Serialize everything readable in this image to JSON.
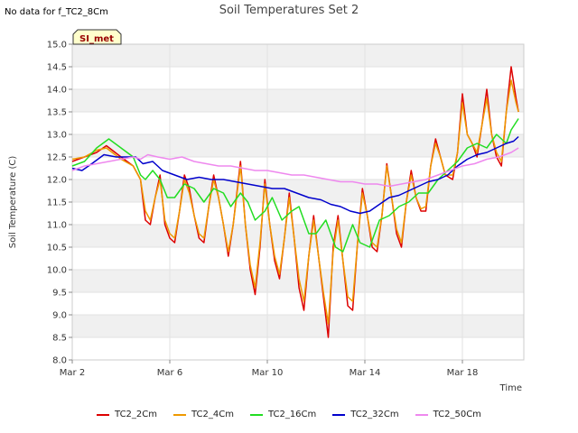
{
  "header": {
    "nodata": "No data for f_TC2_8Cm",
    "title": "Soil Temperatures Set 2",
    "badge": "SI_met"
  },
  "chart_data": {
    "type": "line",
    "title": "Soil Temperatures Set 2",
    "xlabel": "Time",
    "ylabel": "Soil Temperature (C)",
    "xlim": [
      0,
      18
    ],
    "ylim": [
      8.0,
      15.0
    ],
    "x_ticks": [
      {
        "label": "Mar 2",
        "x": 0
      },
      {
        "label": "Mar 6",
        "x": 4
      },
      {
        "label": "Mar 10",
        "x": 8
      },
      {
        "label": "Mar 14",
        "x": 12
      },
      {
        "label": "Mar 18",
        "x": 16
      }
    ],
    "y_ticks": [
      "8.0",
      "8.5",
      "9.0",
      "9.5",
      "10.0",
      "10.5",
      "11.0",
      "11.5",
      "12.0",
      "12.5",
      "13.0",
      "13.5",
      "14.0",
      "14.5",
      "15.0"
    ],
    "grid": true,
    "legend_position": "bottom",
    "series": [
      {
        "name": "TC2_2Cm",
        "color": "#dd0000",
        "points": [
          [
            0.0,
            12.4
          ],
          [
            0.5,
            12.5
          ],
          [
            1.0,
            12.6
          ],
          [
            1.4,
            12.75
          ],
          [
            2.0,
            12.5
          ],
          [
            2.5,
            12.3
          ],
          [
            2.8,
            12.0
          ],
          [
            3.0,
            11.1
          ],
          [
            3.2,
            11.0
          ],
          [
            3.4,
            11.6
          ],
          [
            3.6,
            12.1
          ],
          [
            3.8,
            11.0
          ],
          [
            4.0,
            10.7
          ],
          [
            4.2,
            10.6
          ],
          [
            4.4,
            11.3
          ],
          [
            4.6,
            12.1
          ],
          [
            4.8,
            11.8
          ],
          [
            5.0,
            11.2
          ],
          [
            5.2,
            10.7
          ],
          [
            5.4,
            10.6
          ],
          [
            5.6,
            11.4
          ],
          [
            5.8,
            12.1
          ],
          [
            6.0,
            11.6
          ],
          [
            6.2,
            11.0
          ],
          [
            6.4,
            10.3
          ],
          [
            6.6,
            11.0
          ],
          [
            6.9,
            12.4
          ],
          [
            7.1,
            11.0
          ],
          [
            7.3,
            10.0
          ],
          [
            7.5,
            9.45
          ],
          [
            7.7,
            10.5
          ],
          [
            7.9,
            12.0
          ],
          [
            8.1,
            11.0
          ],
          [
            8.3,
            10.2
          ],
          [
            8.5,
            9.8
          ],
          [
            8.7,
            10.7
          ],
          [
            8.9,
            11.7
          ],
          [
            9.1,
            10.7
          ],
          [
            9.3,
            9.6
          ],
          [
            9.5,
            9.1
          ],
          [
            9.7,
            10.3
          ],
          [
            9.9,
            11.2
          ],
          [
            10.1,
            10.3
          ],
          [
            10.3,
            9.4
          ],
          [
            10.5,
            8.5
          ],
          [
            10.7,
            10.5
          ],
          [
            10.9,
            11.2
          ],
          [
            11.1,
            10.2
          ],
          [
            11.3,
            9.2
          ],
          [
            11.5,
            9.1
          ],
          [
            11.7,
            10.6
          ],
          [
            11.9,
            11.8
          ],
          [
            12.1,
            11.2
          ],
          [
            12.3,
            10.5
          ],
          [
            12.5,
            10.4
          ],
          [
            12.7,
            11.2
          ],
          [
            12.9,
            12.35
          ],
          [
            13.1,
            11.6
          ],
          [
            13.3,
            10.8
          ],
          [
            13.5,
            10.5
          ],
          [
            13.7,
            11.5
          ],
          [
            13.9,
            12.2
          ],
          [
            14.1,
            11.6
          ],
          [
            14.3,
            11.3
          ],
          [
            14.5,
            11.3
          ],
          [
            14.7,
            12.3
          ],
          [
            14.9,
            12.9
          ],
          [
            15.1,
            12.5
          ],
          [
            15.3,
            12.1
          ],
          [
            15.6,
            12.0
          ],
          [
            15.8,
            12.6
          ],
          [
            16.0,
            13.9
          ],
          [
            16.2,
            13.0
          ],
          [
            16.4,
            12.8
          ],
          [
            16.6,
            12.5
          ],
          [
            16.8,
            13.2
          ],
          [
            17.0,
            14.0
          ],
          [
            17.2,
            13.0
          ],
          [
            17.4,
            12.5
          ],
          [
            17.6,
            12.3
          ],
          [
            17.8,
            13.5
          ],
          [
            18.0,
            14.5
          ],
          [
            18.2,
            13.8
          ],
          [
            18.3,
            13.5
          ]
        ]
      },
      {
        "name": "TC2_4Cm",
        "color": "#ee9900",
        "points": [
          [
            0.0,
            12.45
          ],
          [
            0.5,
            12.5
          ],
          [
            1.0,
            12.65
          ],
          [
            1.4,
            12.7
          ],
          [
            2.0,
            12.45
          ],
          [
            2.5,
            12.3
          ],
          [
            2.8,
            12.0
          ],
          [
            3.0,
            11.3
          ],
          [
            3.2,
            11.1
          ],
          [
            3.4,
            11.6
          ],
          [
            3.6,
            12.0
          ],
          [
            3.8,
            11.1
          ],
          [
            4.0,
            10.8
          ],
          [
            4.2,
            10.7
          ],
          [
            4.4,
            11.3
          ],
          [
            4.6,
            12.0
          ],
          [
            4.8,
            11.7
          ],
          [
            5.0,
            11.2
          ],
          [
            5.2,
            10.8
          ],
          [
            5.4,
            10.7
          ],
          [
            5.6,
            11.4
          ],
          [
            5.8,
            12.0
          ],
          [
            6.0,
            11.6
          ],
          [
            6.2,
            11.0
          ],
          [
            6.4,
            10.4
          ],
          [
            6.6,
            11.0
          ],
          [
            6.9,
            12.3
          ],
          [
            7.1,
            11.0
          ],
          [
            7.3,
            10.1
          ],
          [
            7.5,
            9.6
          ],
          [
            7.7,
            10.6
          ],
          [
            7.9,
            11.9
          ],
          [
            8.1,
            11.0
          ],
          [
            8.3,
            10.3
          ],
          [
            8.5,
            9.9
          ],
          [
            8.7,
            10.7
          ],
          [
            8.9,
            11.6
          ],
          [
            9.1,
            10.7
          ],
          [
            9.3,
            9.8
          ],
          [
            9.5,
            9.3
          ],
          [
            9.7,
            10.3
          ],
          [
            9.9,
            11.1
          ],
          [
            10.1,
            10.3
          ],
          [
            10.3,
            9.5
          ],
          [
            10.5,
            8.8
          ],
          [
            10.7,
            10.4
          ],
          [
            10.9,
            11.1
          ],
          [
            11.1,
            10.2
          ],
          [
            11.3,
            9.4
          ],
          [
            11.5,
            9.3
          ],
          [
            11.7,
            10.6
          ],
          [
            11.9,
            11.7
          ],
          [
            12.1,
            11.2
          ],
          [
            12.3,
            10.6
          ],
          [
            12.5,
            10.5
          ],
          [
            12.7,
            11.2
          ],
          [
            12.9,
            12.3
          ],
          [
            13.1,
            11.6
          ],
          [
            13.3,
            10.9
          ],
          [
            13.5,
            10.6
          ],
          [
            13.7,
            11.5
          ],
          [
            13.9,
            12.1
          ],
          [
            14.1,
            11.6
          ],
          [
            14.3,
            11.35
          ],
          [
            14.5,
            11.4
          ],
          [
            14.7,
            12.3
          ],
          [
            14.9,
            12.8
          ],
          [
            15.1,
            12.5
          ],
          [
            15.3,
            12.1
          ],
          [
            15.6,
            12.1
          ],
          [
            15.8,
            12.6
          ],
          [
            16.0,
            13.7
          ],
          [
            16.2,
            13.0
          ],
          [
            16.4,
            12.8
          ],
          [
            16.6,
            12.6
          ],
          [
            16.8,
            13.2
          ],
          [
            17.0,
            13.8
          ],
          [
            17.2,
            13.0
          ],
          [
            17.4,
            12.6
          ],
          [
            17.6,
            12.4
          ],
          [
            17.8,
            13.5
          ],
          [
            18.0,
            14.2
          ],
          [
            18.2,
            13.7
          ],
          [
            18.3,
            13.5
          ]
        ]
      },
      {
        "name": "TC2_16Cm",
        "color": "#22dd22",
        "points": [
          [
            0.0,
            12.3
          ],
          [
            0.5,
            12.4
          ],
          [
            1.0,
            12.7
          ],
          [
            1.5,
            12.9
          ],
          [
            2.0,
            12.7
          ],
          [
            2.5,
            12.5
          ],
          [
            2.8,
            12.1
          ],
          [
            3.0,
            12.0
          ],
          [
            3.3,
            12.2
          ],
          [
            3.6,
            12.0
          ],
          [
            3.9,
            11.6
          ],
          [
            4.2,
            11.6
          ],
          [
            4.6,
            11.9
          ],
          [
            5.0,
            11.8
          ],
          [
            5.4,
            11.5
          ],
          [
            5.8,
            11.8
          ],
          [
            6.2,
            11.7
          ],
          [
            6.5,
            11.4
          ],
          [
            6.9,
            11.7
          ],
          [
            7.2,
            11.5
          ],
          [
            7.5,
            11.1
          ],
          [
            7.9,
            11.3
          ],
          [
            8.2,
            11.6
          ],
          [
            8.6,
            11.1
          ],
          [
            9.0,
            11.3
          ],
          [
            9.3,
            11.4
          ],
          [
            9.7,
            10.8
          ],
          [
            10.0,
            10.8
          ],
          [
            10.4,
            11.1
          ],
          [
            10.8,
            10.5
          ],
          [
            11.1,
            10.4
          ],
          [
            11.5,
            11.0
          ],
          [
            11.8,
            10.6
          ],
          [
            12.2,
            10.5
          ],
          [
            12.6,
            11.1
          ],
          [
            13.0,
            11.2
          ],
          [
            13.4,
            11.4
          ],
          [
            13.8,
            11.5
          ],
          [
            14.2,
            11.7
          ],
          [
            14.6,
            11.7
          ],
          [
            15.0,
            12.0
          ],
          [
            15.4,
            12.2
          ],
          [
            15.8,
            12.4
          ],
          [
            16.2,
            12.7
          ],
          [
            16.6,
            12.8
          ],
          [
            17.0,
            12.7
          ],
          [
            17.4,
            13.0
          ],
          [
            17.8,
            12.8
          ],
          [
            18.0,
            13.1
          ],
          [
            18.3,
            13.35
          ]
        ]
      },
      {
        "name": "TC2_32Cm",
        "color": "#0000cc",
        "points": [
          [
            0.0,
            12.25
          ],
          [
            0.4,
            12.2
          ],
          [
            0.8,
            12.35
          ],
          [
            1.3,
            12.55
          ],
          [
            1.8,
            12.5
          ],
          [
            2.3,
            12.5
          ],
          [
            2.6,
            12.5
          ],
          [
            2.9,
            12.35
          ],
          [
            3.3,
            12.4
          ],
          [
            3.7,
            12.2
          ],
          [
            4.2,
            12.1
          ],
          [
            4.7,
            12.0
          ],
          [
            5.2,
            12.05
          ],
          [
            5.7,
            12.0
          ],
          [
            6.2,
            12.0
          ],
          [
            6.7,
            11.95
          ],
          [
            7.2,
            11.9
          ],
          [
            7.7,
            11.85
          ],
          [
            8.2,
            11.8
          ],
          [
            8.7,
            11.8
          ],
          [
            9.2,
            11.7
          ],
          [
            9.7,
            11.6
          ],
          [
            10.2,
            11.55
          ],
          [
            10.6,
            11.45
          ],
          [
            11.0,
            11.4
          ],
          [
            11.4,
            11.3
          ],
          [
            11.8,
            11.25
          ],
          [
            12.2,
            11.3
          ],
          [
            12.6,
            11.45
          ],
          [
            13.0,
            11.6
          ],
          [
            13.4,
            11.65
          ],
          [
            13.8,
            11.75
          ],
          [
            14.2,
            11.85
          ],
          [
            14.6,
            11.95
          ],
          [
            15.0,
            12.0
          ],
          [
            15.4,
            12.1
          ],
          [
            15.8,
            12.3
          ],
          [
            16.2,
            12.45
          ],
          [
            16.6,
            12.55
          ],
          [
            17.0,
            12.6
          ],
          [
            17.4,
            12.7
          ],
          [
            17.8,
            12.8
          ],
          [
            18.1,
            12.85
          ],
          [
            18.3,
            12.95
          ]
        ]
      },
      {
        "name": "TC2_50Cm",
        "color": "#ee88ee",
        "points": [
          [
            0.0,
            12.2
          ],
          [
            0.5,
            12.3
          ],
          [
            1.0,
            12.35
          ],
          [
            1.5,
            12.4
          ],
          [
            2.0,
            12.45
          ],
          [
            2.5,
            12.5
          ],
          [
            2.8,
            12.45
          ],
          [
            3.1,
            12.55
          ],
          [
            3.5,
            12.5
          ],
          [
            4.0,
            12.45
          ],
          [
            4.5,
            12.5
          ],
          [
            5.0,
            12.4
          ],
          [
            5.5,
            12.35
          ],
          [
            6.0,
            12.3
          ],
          [
            6.5,
            12.3
          ],
          [
            7.0,
            12.25
          ],
          [
            7.5,
            12.2
          ],
          [
            8.0,
            12.2
          ],
          [
            8.5,
            12.15
          ],
          [
            9.0,
            12.1
          ],
          [
            9.5,
            12.1
          ],
          [
            10.0,
            12.05
          ],
          [
            10.5,
            12.0
          ],
          [
            11.0,
            11.95
          ],
          [
            11.5,
            11.95
          ],
          [
            12.0,
            11.9
          ],
          [
            12.5,
            11.9
          ],
          [
            13.0,
            11.85
          ],
          [
            13.5,
            11.9
          ],
          [
            14.0,
            11.95
          ],
          [
            14.5,
            12.0
          ],
          [
            15.0,
            12.1
          ],
          [
            15.5,
            12.2
          ],
          [
            16.0,
            12.3
          ],
          [
            16.5,
            12.35
          ],
          [
            17.0,
            12.45
          ],
          [
            17.5,
            12.5
          ],
          [
            18.0,
            12.6
          ],
          [
            18.3,
            12.7
          ]
        ]
      }
    ]
  }
}
